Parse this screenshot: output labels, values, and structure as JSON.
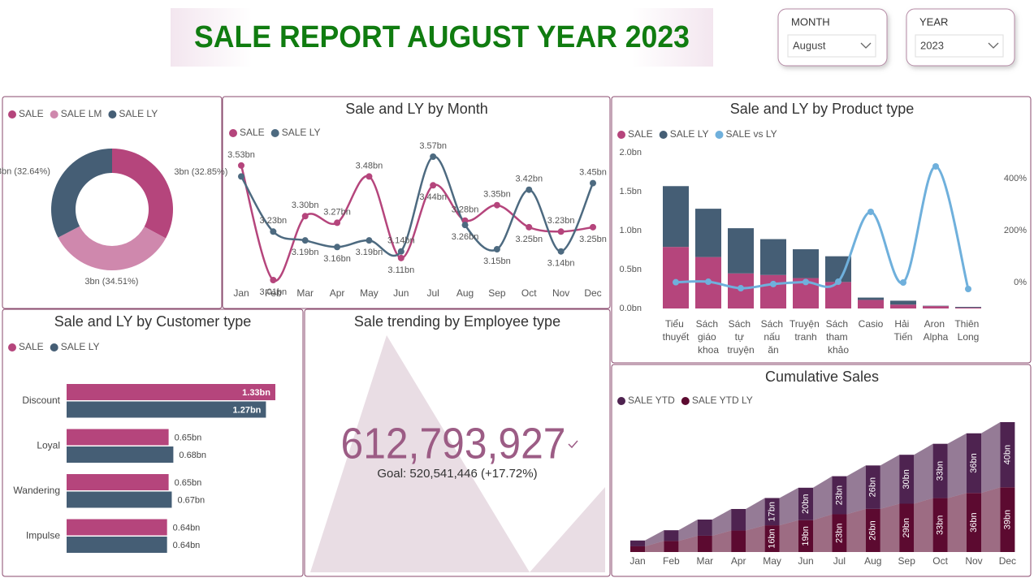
{
  "header": {
    "title": "SALE REPORT AUGUST YEAR 2023"
  },
  "filters": [
    {
      "label": "MONTH",
      "value": "August"
    },
    {
      "label": "YEAR",
      "value": "2023"
    }
  ],
  "chart_data": [
    {
      "type": "donut",
      "categories": [
        "SALE",
        "SALE LM",
        "SALE LY"
      ],
      "colors": [
        "#b5457c",
        "#cf88ad",
        "#455e75"
      ],
      "values": [
        32.85,
        34.51,
        32.64
      ],
      "value_labels": [
        "3bn (32.85%)",
        "3bn (34.51%)",
        "3bn (32.64%)"
      ]
    },
    {
      "type": "line",
      "title": "Sale and LY by Month",
      "categories": [
        "Jan",
        "Feb",
        "Mar",
        "Apr",
        "May",
        "Jun",
        "Jul",
        "Aug",
        "Sep",
        "Oct",
        "Nov",
        "Dec"
      ],
      "series": [
        {
          "name": "SALE",
          "color": "#b5457c",
          "values": [
            3.53,
            3.01,
            3.3,
            3.27,
            3.48,
            3.11,
            3.44,
            3.28,
            3.35,
            3.25,
            3.23,
            3.25
          ],
          "value_labels": [
            "3.53bn",
            "3.01bn",
            "3.30bn",
            "3.27bn",
            "3.48bn",
            "3.11bn",
            "3.44bn",
            "3.28bn",
            "3.35bn",
            "3.25bn",
            "3.23bn",
            "3.25bn"
          ]
        },
        {
          "name": "SALE LY",
          "color": "#4d6a80",
          "values": [
            3.48,
            3.23,
            3.19,
            3.16,
            3.19,
            3.14,
            3.57,
            3.26,
            3.15,
            3.42,
            3.14,
            3.45
          ],
          "value_labels": [
            null,
            "3.23bn",
            "3.19bn",
            "3.16bn",
            "3.19bn",
            "3.14bn",
            "3.57bn",
            "3.26bn",
            "3.15bn",
            "3.42bn",
            "3.14bn",
            "3.45bn"
          ]
        }
      ]
    },
    {
      "type": "combo",
      "title": "Sale and LY by Product type",
      "categories": [
        "Tiểu thuyết",
        "Sách giáo khoa",
        "Sách tự truyện",
        "Sách nấu ăn",
        "Truyện tranh",
        "Sách tham khảo",
        "Casio",
        "Hải Tiến",
        "Aron Alpha",
        "Thiên Long"
      ],
      "series": [
        {
          "name": "SALE",
          "color": "#b5457c",
          "values": [
            0.79,
            0.66,
            0.45,
            0.43,
            0.39,
            0.34,
            0.11,
            0.05,
            0.03,
            0.01
          ]
        },
        {
          "name": "SALE LY",
          "color": "#455e75",
          "values": [
            0.78,
            0.62,
            0.58,
            0.46,
            0.37,
            0.33,
            0.03,
            0.05,
            0.005,
            0.01
          ]
        },
        {
          "name": "SALE vs LY",
          "color": "#6fb0dc",
          "axis": "y2",
          "values": [
            1,
            3,
            -22,
            -6,
            2,
            3,
            272,
            0,
            447,
            -25
          ]
        }
      ],
      "ylim": [
        0,
        2
      ],
      "yticks": [
        {
          "value": 0,
          "label": "0.0bn"
        },
        {
          "value": 0.5,
          "label": "0.5bn"
        },
        {
          "value": 1,
          "label": "1.0bn"
        },
        {
          "value": 1.5,
          "label": "1.5bn"
        },
        {
          "value": 2,
          "label": "2.0bn"
        }
      ],
      "y2lim": [
        -100,
        500
      ],
      "y2ticks": [
        {
          "value": 0,
          "label": "0%"
        },
        {
          "value": 200,
          "label": "200%"
        },
        {
          "value": 400,
          "label": "400%"
        }
      ]
    },
    {
      "type": "hbar",
      "title": "Sale and LY by Customer type",
      "categories": [
        "Discount",
        "Loyal",
        "Wandering",
        "Impulse"
      ],
      "series": [
        {
          "name": "SALE",
          "color": "#b5457c",
          "values": [
            1.33,
            0.65,
            0.65,
            0.64
          ],
          "value_labels": [
            "1.33bn",
            "0.65bn",
            "0.65bn",
            "0.64bn"
          ]
        },
        {
          "name": "SALE LY",
          "color": "#455e75",
          "values": [
            1.27,
            0.68,
            0.67,
            0.64
          ],
          "value_labels": [
            "1.27bn",
            "0.68bn",
            "0.67bn",
            "0.64bn"
          ]
        }
      ]
    },
    {
      "type": "kpi",
      "title": "Sale trending by Employee type",
      "value": "612,793,927",
      "goal": "Goal: 520,541,446 (+17.72%)"
    },
    {
      "type": "ribbon",
      "title": "Cumulative Sales",
      "categories": [
        "Jan",
        "Feb",
        "Mar",
        "Apr",
        "May",
        "Jun",
        "Jul",
        "Aug",
        "Sep",
        "Oct",
        "Nov",
        "Dec"
      ],
      "series": [
        {
          "name": "SALE YTD LY",
          "color": "#5c0a30",
          "values": [
            3.48,
            6.71,
            9.9,
            13.06,
            16.25,
            19.39,
            22.96,
            26.22,
            29.37,
            32.79,
            35.93,
            39.38
          ],
          "value_labels": [
            null,
            null,
            null,
            null,
            "16bn",
            "19bn",
            "23bn",
            "26bn",
            "29bn",
            "33bn",
            "36bn",
            "39bn"
          ]
        },
        {
          "name": "SALE YTD",
          "color": "#4e2350",
          "values": [
            3.53,
            6.54,
            9.84,
            13.11,
            16.59,
            19.7,
            23.14,
            26.42,
            29.77,
            33.02,
            36.25,
            39.6
          ],
          "value_labels": [
            null,
            null,
            null,
            null,
            "17bn",
            "20bn",
            "23bn",
            "26bn",
            "30bn",
            "33bn",
            "36bn",
            "40bn"
          ]
        }
      ],
      "legend_order": [
        1,
        0
      ]
    }
  ]
}
